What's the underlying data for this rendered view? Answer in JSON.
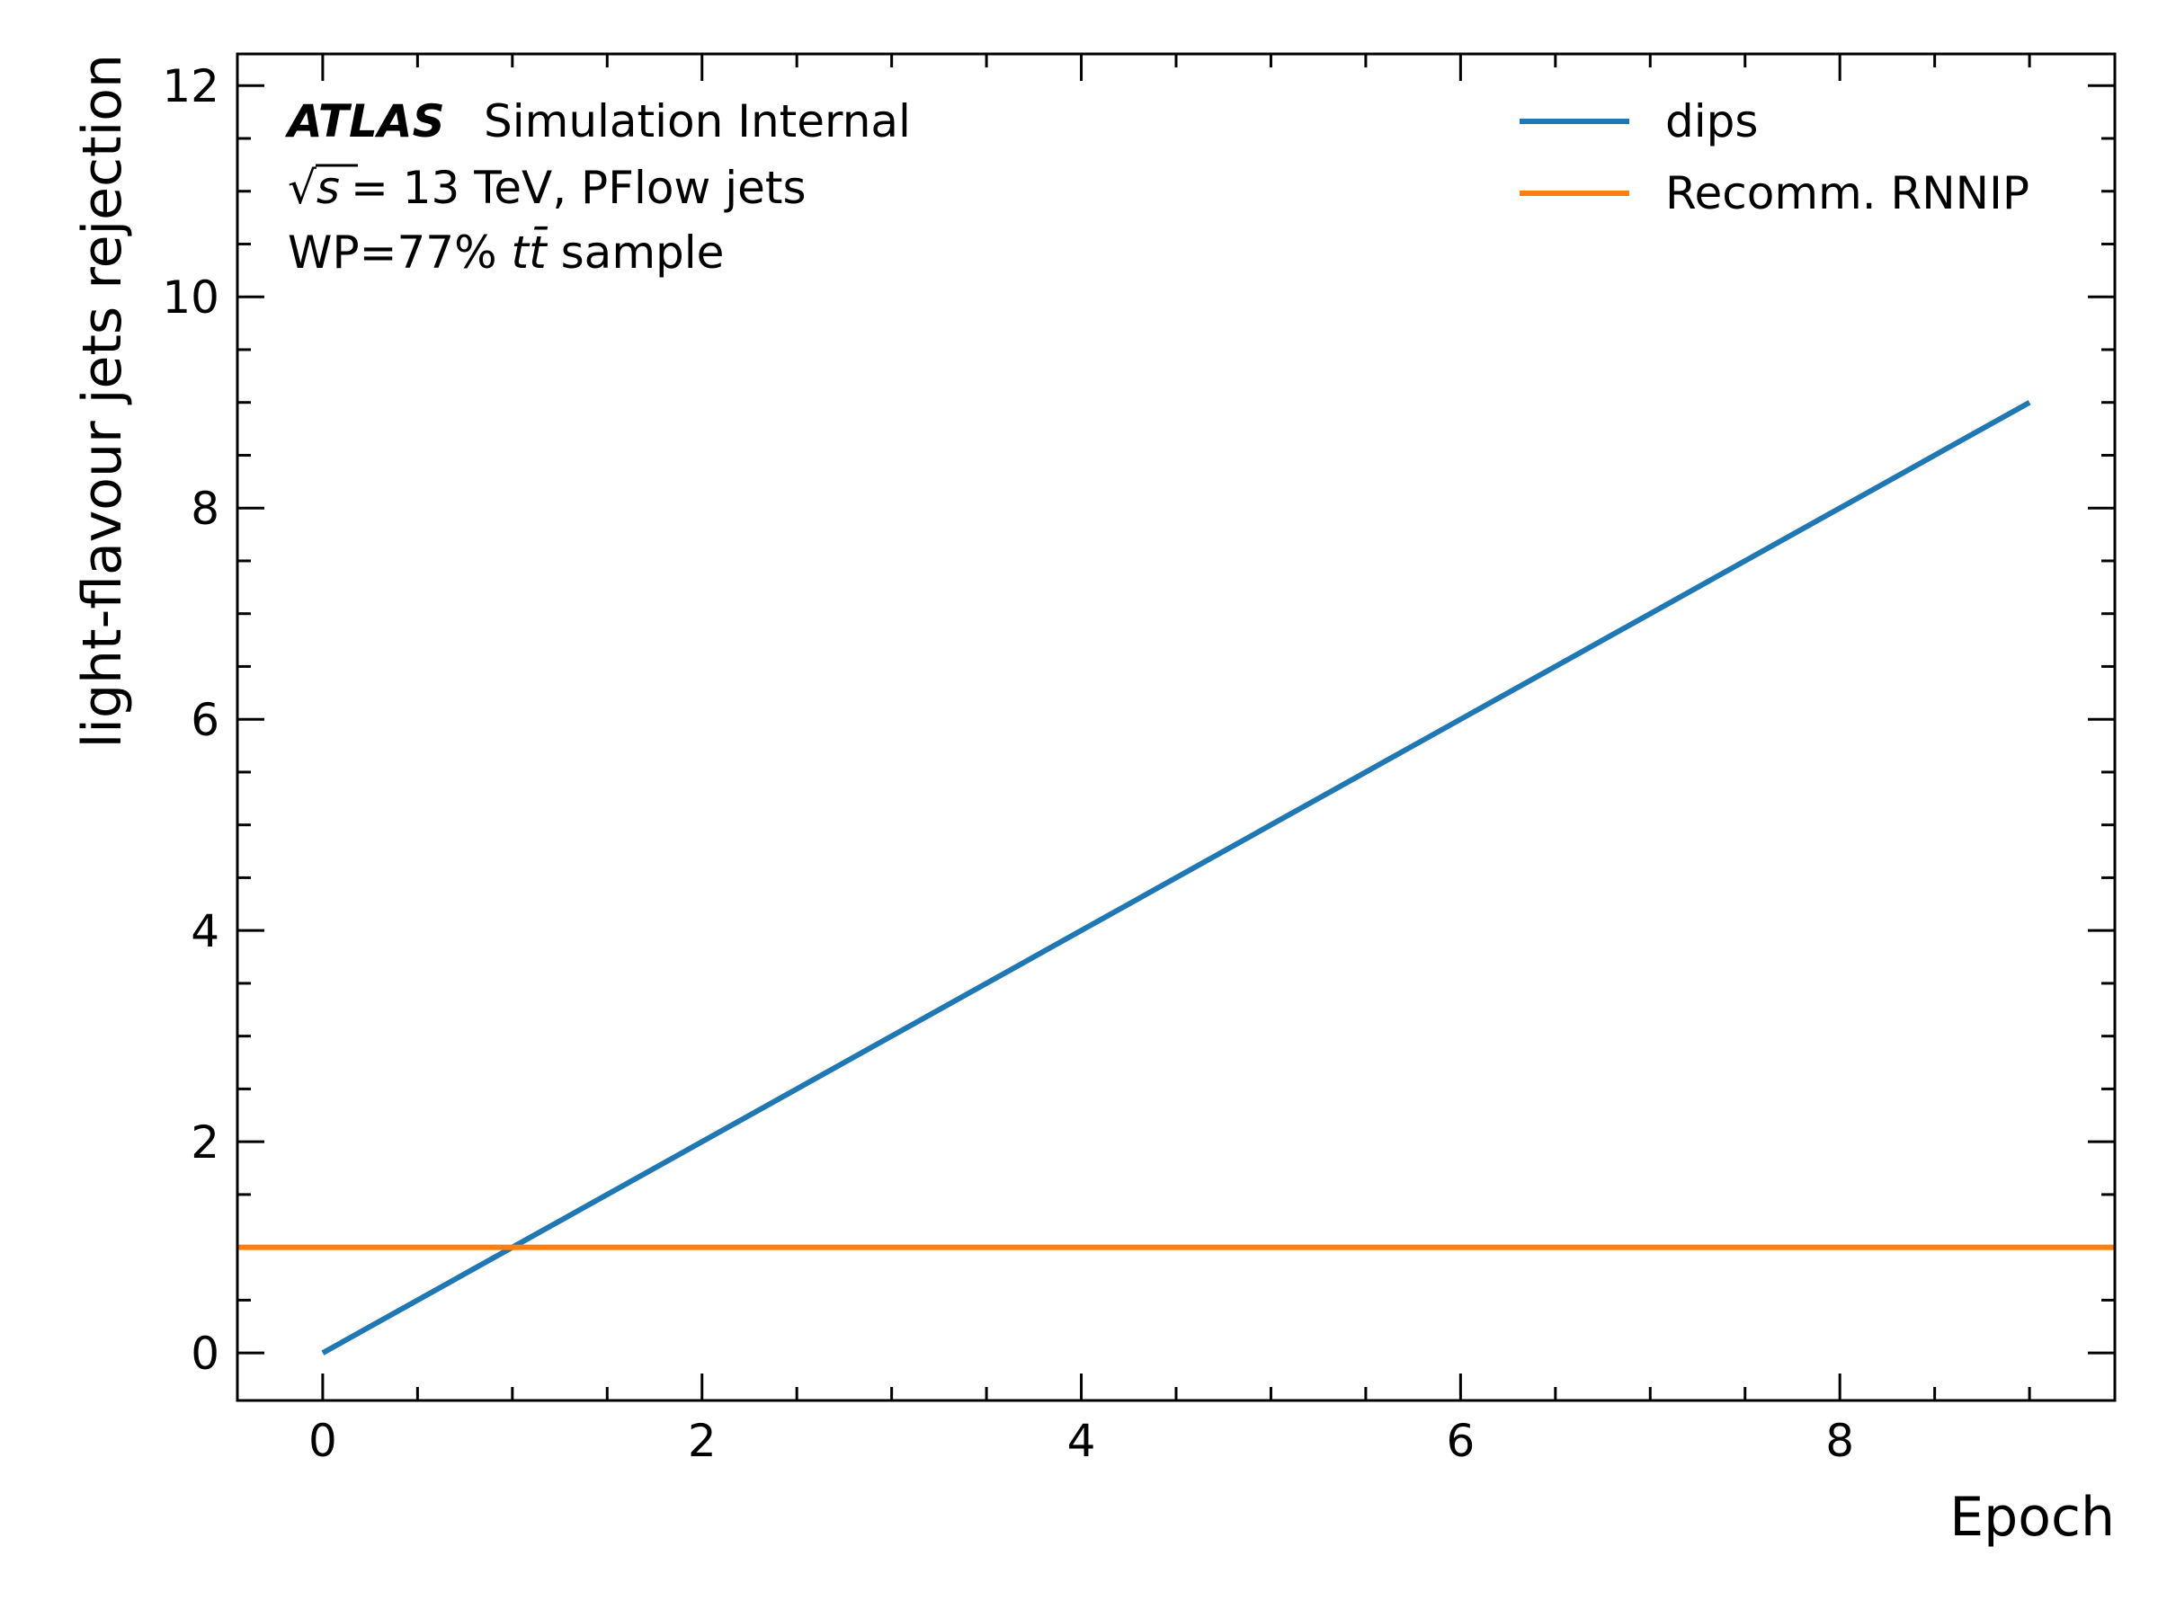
{
  "chart_data": {
    "type": "line",
    "xlabel": "Epoch",
    "ylabel": "light-flavour jets rejection",
    "xlim": [
      -0.45,
      9.45
    ],
    "ylim": [
      -0.45,
      12.3
    ],
    "x_ticks": [
      0,
      2,
      4,
      6,
      8
    ],
    "y_ticks": [
      0,
      2,
      4,
      6,
      8,
      10,
      12
    ],
    "x_minor_step": 0.5,
    "y_minor_step": 0.5,
    "tick_direction": "in",
    "grid": false,
    "legend_position": "top-right",
    "series": [
      {
        "name": "dips",
        "color": "#1f77b4",
        "x": [
          0,
          1,
          2,
          3,
          4,
          5,
          6,
          7,
          8,
          9
        ],
        "y": [
          0,
          1,
          2,
          3,
          4,
          5,
          6,
          7,
          8,
          9
        ]
      },
      {
        "name": "Recomm. RNNIP",
        "color": "#ff7f0e",
        "kind": "hline",
        "y": 1
      }
    ],
    "annotation": {
      "brand": "ATLAS",
      "status": "Simulation Internal",
      "sqrt_symbol": "√",
      "sqrt_var": "s",
      "energy": "= 13 TeV, PFlow jets",
      "wp_prefix": "WP=77% ",
      "sample_t": "t",
      "sample_tbar": "t̄",
      "sample_suffix": " sample"
    }
  }
}
